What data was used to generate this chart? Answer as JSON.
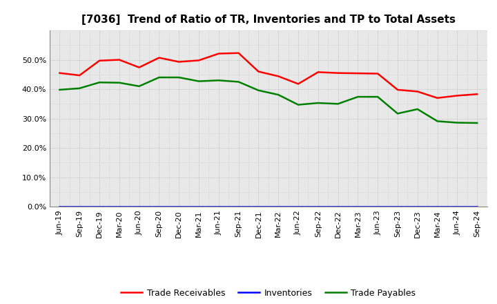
{
  "title": "[7036]  Trend of Ratio of TR, Inventories and TP to Total Assets",
  "x_labels": [
    "Jun-19",
    "Sep-19",
    "Dec-19",
    "Mar-20",
    "Jun-20",
    "Sep-20",
    "Dec-20",
    "Mar-21",
    "Jun-21",
    "Sep-21",
    "Dec-21",
    "Mar-22",
    "Jun-22",
    "Sep-22",
    "Dec-22",
    "Mar-23",
    "Jun-23",
    "Sep-23",
    "Dec-23",
    "Mar-24",
    "Jun-24",
    "Sep-24"
  ],
  "trade_receivables": [
    0.455,
    0.447,
    0.497,
    0.5,
    0.474,
    0.507,
    0.493,
    0.498,
    0.521,
    0.523,
    0.46,
    0.444,
    0.418,
    0.458,
    0.455,
    0.454,
    0.453,
    0.398,
    0.392,
    0.37,
    0.378,
    0.383
  ],
  "inventories": [
    0.0,
    0.0,
    0.0,
    0.0,
    0.0,
    0.0,
    0.0,
    0.0,
    0.0,
    0.0,
    0.0,
    0.0,
    0.0,
    0.0,
    0.0,
    0.0,
    0.0,
    0.0,
    0.0,
    0.0,
    0.0,
    0.0
  ],
  "trade_payables": [
    0.398,
    0.403,
    0.423,
    0.422,
    0.41,
    0.44,
    0.44,
    0.427,
    0.43,
    0.425,
    0.396,
    0.381,
    0.347,
    0.353,
    0.35,
    0.374,
    0.374,
    0.317,
    0.332,
    0.291,
    0.286,
    0.285
  ],
  "tr_color": "#FF0000",
  "inv_color": "#0000FF",
  "tp_color": "#008000",
  "background_color": "#FFFFFF",
  "plot_bg_color": "#E8E8E8",
  "grid_color": "#AAAAAA",
  "ylim": [
    0.0,
    0.6
  ],
  "yticks": [
    0.0,
    0.1,
    0.2,
    0.3,
    0.4,
    0.5
  ],
  "legend_labels": [
    "Trade Receivables",
    "Inventories",
    "Trade Payables"
  ],
  "title_fontsize": 11,
  "tick_fontsize": 8,
  "legend_fontsize": 9
}
